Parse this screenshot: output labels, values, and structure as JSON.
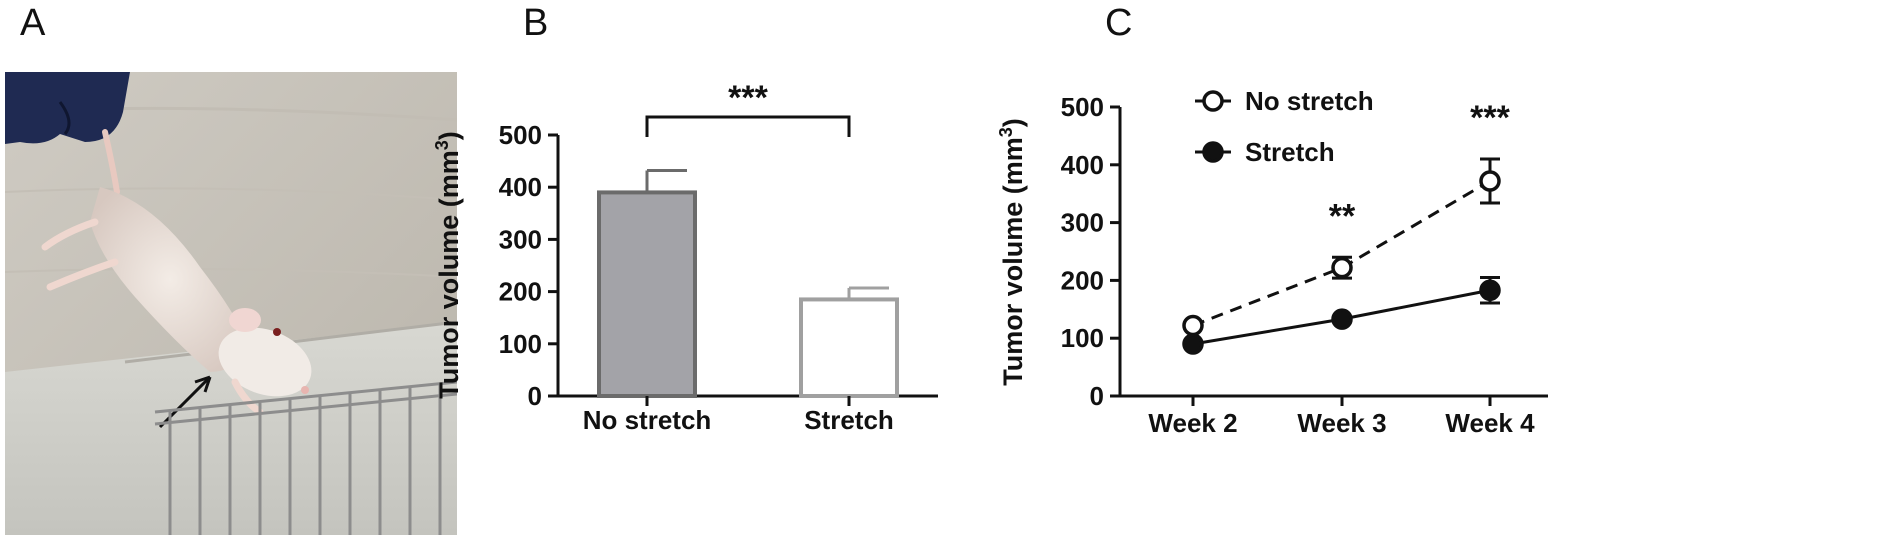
{
  "panels": {
    "a": "A",
    "b": "B",
    "c": "C"
  },
  "photo": {
    "subject": "mouse-photo"
  },
  "chart_data": [
    {
      "type": "bar",
      "categories": [
        "No stretch",
        "Stretch"
      ],
      "values": [
        390,
        185
      ],
      "errors": [
        42,
        22
      ],
      "ylabel": "Tumor volume (mm",
      "ylabel_sup": "3",
      "ylabel_close": ")",
      "ylim": [
        0,
        500
      ],
      "yticks": [
        0,
        100,
        200,
        300,
        400,
        500
      ],
      "yticklabels": [
        "0",
        "100",
        "200",
        "300",
        "400",
        "500"
      ],
      "bar_fills": [
        "#a3a3a8",
        "#ffffff"
      ],
      "bar_strokes": [
        "#6b6b6b",
        "#a0a0a0"
      ],
      "significance": "***",
      "grid": false
    },
    {
      "type": "line",
      "categories": [
        "Week 2",
        "Week 3",
        "Week 4"
      ],
      "series": [
        {
          "name": "No stretch",
          "values": [
            122,
            222,
            372
          ],
          "errors": [
            5,
            18,
            38
          ],
          "marker": "open",
          "dash": true
        },
        {
          "name": "Stretch",
          "values": [
            90,
            133,
            183
          ],
          "errors": [
            4,
            6,
            22
          ],
          "marker": "filled",
          "dash": false
        }
      ],
      "ylabel": "Tumor volume (mm",
      "ylabel_sup": "3",
      "ylabel_close": ")",
      "ylim": [
        0,
        500
      ],
      "yticks": [
        0,
        100,
        200,
        300,
        400,
        500
      ],
      "yticklabels": [
        "0",
        "100",
        "200",
        "300",
        "400",
        "500"
      ],
      "annotations": [
        {
          "category": "Week 3",
          "text": "**"
        },
        {
          "category": "Week 4",
          "text": "***"
        }
      ],
      "legend": "top-left",
      "grid": false
    }
  ]
}
